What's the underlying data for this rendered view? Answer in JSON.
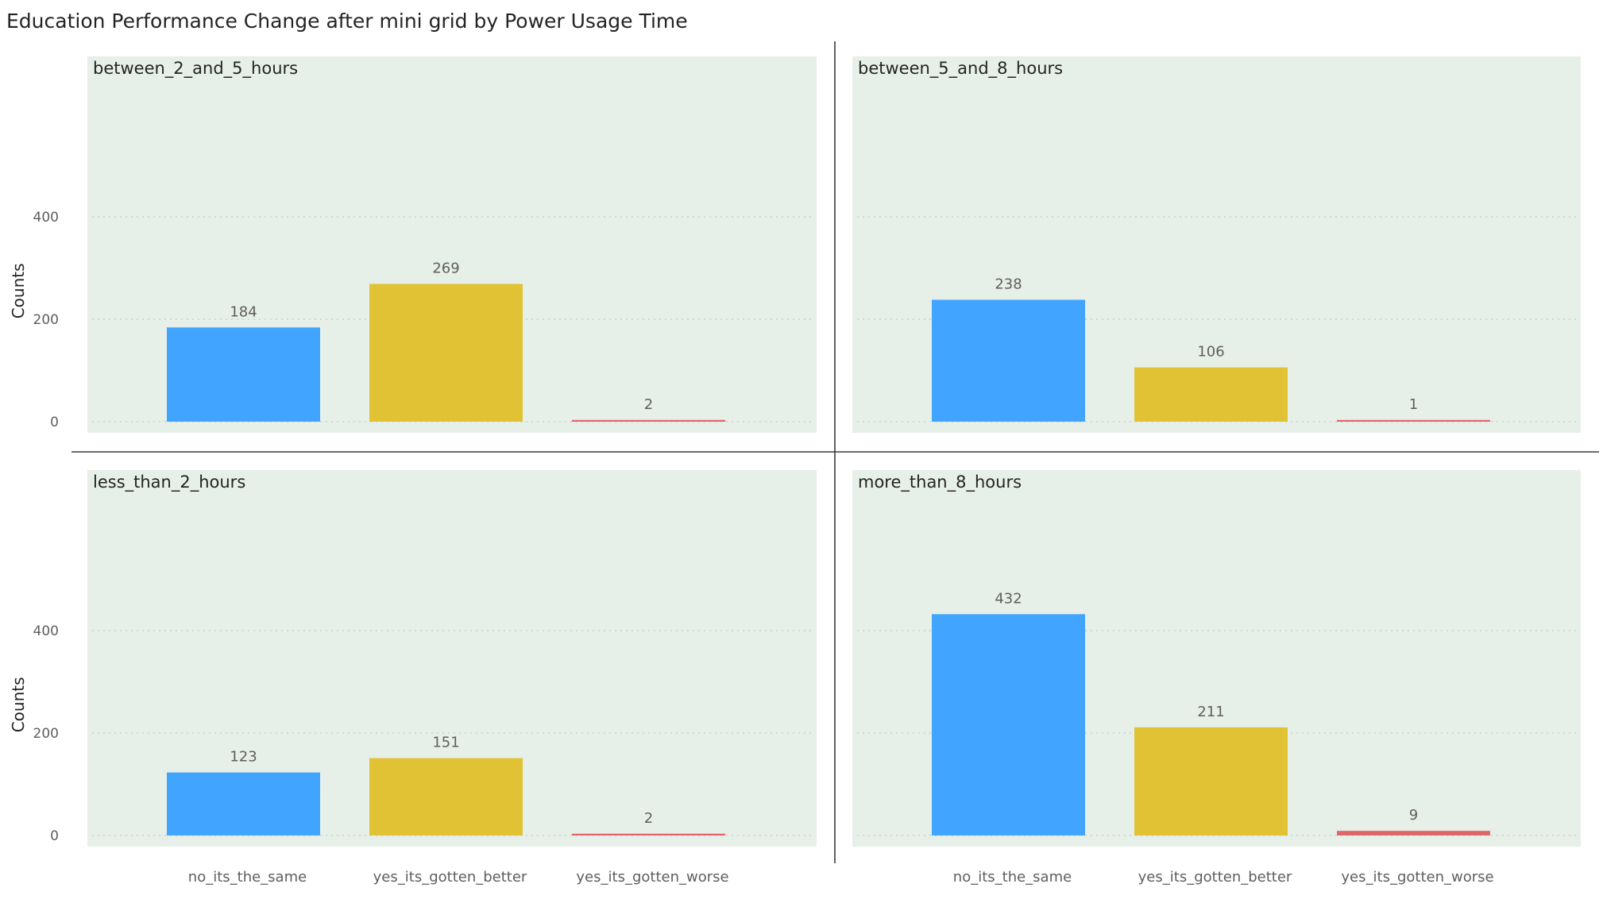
{
  "chart_data": {
    "type": "bar",
    "title": "Education Performance Change after mini grid by Power Usage Time",
    "ylabel": "Counts",
    "xlabel": "",
    "ylim": [
      0,
      560
    ],
    "yticks": [
      0,
      200,
      400
    ],
    "grid": "horizontal dotted",
    "categories": [
      "no_its_the_same",
      "yes_its_gotten_better",
      "yes_its_gotten_worse"
    ],
    "colors": {
      "no_its_the_same": "#41a4ff",
      "yes_its_gotten_better": "#e0c234",
      "yes_its_gotten_worse": "#e0666c"
    },
    "panels": [
      {
        "label": "between_2_and_5_hours",
        "values": [
          184,
          269,
          2
        ]
      },
      {
        "label": "between_5_and_8_hours",
        "values": [
          238,
          106,
          1
        ]
      },
      {
        "label": "less_than_2_hours",
        "values": [
          123,
          151,
          2
        ]
      },
      {
        "label": "more_than_8_hours",
        "values": [
          432,
          211,
          9
        ]
      }
    ]
  }
}
